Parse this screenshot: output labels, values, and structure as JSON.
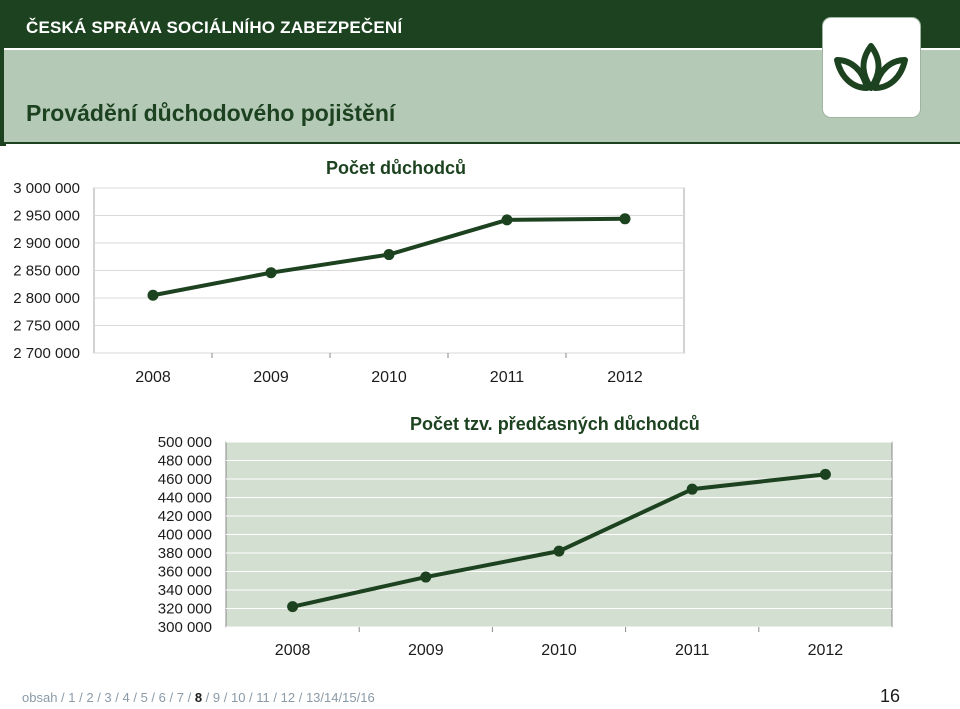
{
  "header": {
    "org_name": "ČESKÁ SPRÁVA SOCIÁLNÍHO ZABEZPEČENÍ",
    "title": "Provádění důchodového pojištění"
  },
  "logo": {
    "icon": "lotus-leaf-logo-icon",
    "color": "#1c4220"
  },
  "colors": {
    "series_line": "#1c4220",
    "header": "#1c4220",
    "band": "#b5c9b7",
    "plot_area_2": "#d3dfd0"
  },
  "chart_data": [
    {
      "type": "line",
      "title": "Počet důchodců",
      "categories": [
        "2008",
        "2009",
        "2010",
        "2011",
        "2012"
      ],
      "values": [
        2805000,
        2846000,
        2879000,
        2942000,
        2944000
      ],
      "y_tick_labels": [
        "2 700 000",
        "2 750 000",
        "2 800 000",
        "2 850 000",
        "2 900 000",
        "2 950 000",
        "3 000 000"
      ],
      "ylim": [
        2700000,
        3000000
      ],
      "xlabel": "",
      "ylabel": "",
      "grid": true,
      "legend": false
    },
    {
      "type": "line",
      "title": "Počet tzv. předčasných důchodců",
      "categories": [
        "2008",
        "2009",
        "2010",
        "2011",
        "2012"
      ],
      "values": [
        322000,
        354000,
        382000,
        449000,
        465000
      ],
      "y_tick_labels": [
        "300 000",
        "320 000",
        "340 000",
        "360 000",
        "380 000",
        "400 000",
        "420 000",
        "440 000",
        "460 000",
        "480 000",
        "500 000"
      ],
      "ylim": [
        300000,
        500000
      ],
      "xlabel": "",
      "ylabel": "",
      "grid": true,
      "legend": false
    }
  ],
  "footer": {
    "nav": [
      {
        "label": "obsah",
        "current": false
      },
      {
        "label": "1",
        "current": false
      },
      {
        "label": "2",
        "current": false
      },
      {
        "label": "3",
        "current": false
      },
      {
        "label": "4",
        "current": false
      },
      {
        "label": "5",
        "current": false
      },
      {
        "label": "6",
        "current": false
      },
      {
        "label": "7",
        "current": false
      },
      {
        "label": "8",
        "current": true
      },
      {
        "label": "9",
        "current": false
      },
      {
        "label": "10",
        "current": false
      },
      {
        "label": "11",
        "current": false
      },
      {
        "label": "12",
        "current": false
      },
      {
        "label": "13",
        "current": false
      },
      {
        "label": "14",
        "current": false
      },
      {
        "label": "15",
        "current": false
      },
      {
        "label": "16",
        "current": false
      }
    ],
    "page_number": "16"
  }
}
